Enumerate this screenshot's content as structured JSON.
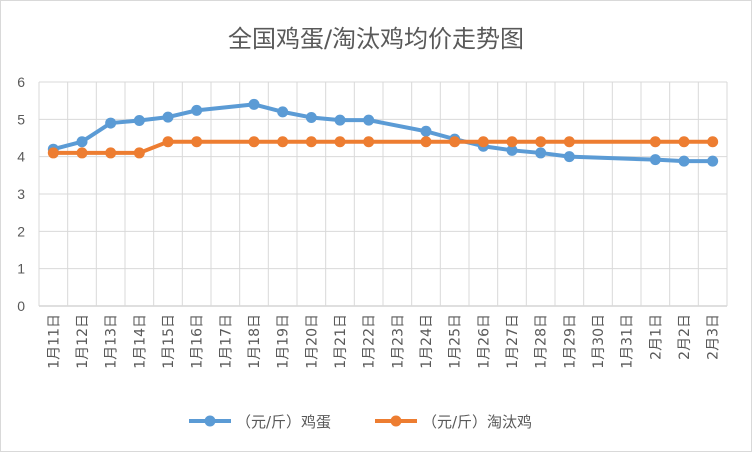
{
  "chart_data": {
    "type": "line",
    "title": "全国鸡蛋/淘汰鸡均价走势图",
    "categories": [
      "1月11日",
      "1月12日",
      "1月13日",
      "1月14日",
      "1月15日",
      "1月16日",
      "1月17日",
      "1月18日",
      "1月19日",
      "1月20日",
      "1月21日",
      "1月22日",
      "1月23日",
      "1月24日",
      "1月25日",
      "1月26日",
      "1月27日",
      "1月28日",
      "1月29日",
      "1月30日",
      "1月31日",
      "2月1日",
      "2月2日",
      "2月3日"
    ],
    "ylim": [
      0,
      6
    ],
    "yticks": [
      "0",
      "1",
      "2",
      "3",
      "4",
      "5",
      "6"
    ],
    "grid": true,
    "legend_position": "bottom",
    "series": [
      {
        "name": "（元/斤）鸡蛋",
        "color": "#5b9bd5",
        "values": [
          4.2,
          4.4,
          4.9,
          4.97,
          5.06,
          5.24,
          null,
          5.4,
          5.2,
          5.05,
          4.98,
          4.98,
          null,
          4.68,
          4.47,
          4.28,
          4.17,
          4.1,
          4.0,
          null,
          null,
          3.92,
          3.88,
          3.88
        ]
      },
      {
        "name": "（元/斤）淘汰鸡",
        "color": "#ed7d31",
        "values": [
          4.1,
          4.1,
          4.1,
          4.1,
          4.4,
          4.4,
          null,
          4.4,
          4.4,
          4.4,
          4.4,
          4.4,
          null,
          4.4,
          4.4,
          4.4,
          4.4,
          4.4,
          4.4,
          null,
          null,
          4.4,
          4.4,
          4.4
        ]
      }
    ]
  }
}
